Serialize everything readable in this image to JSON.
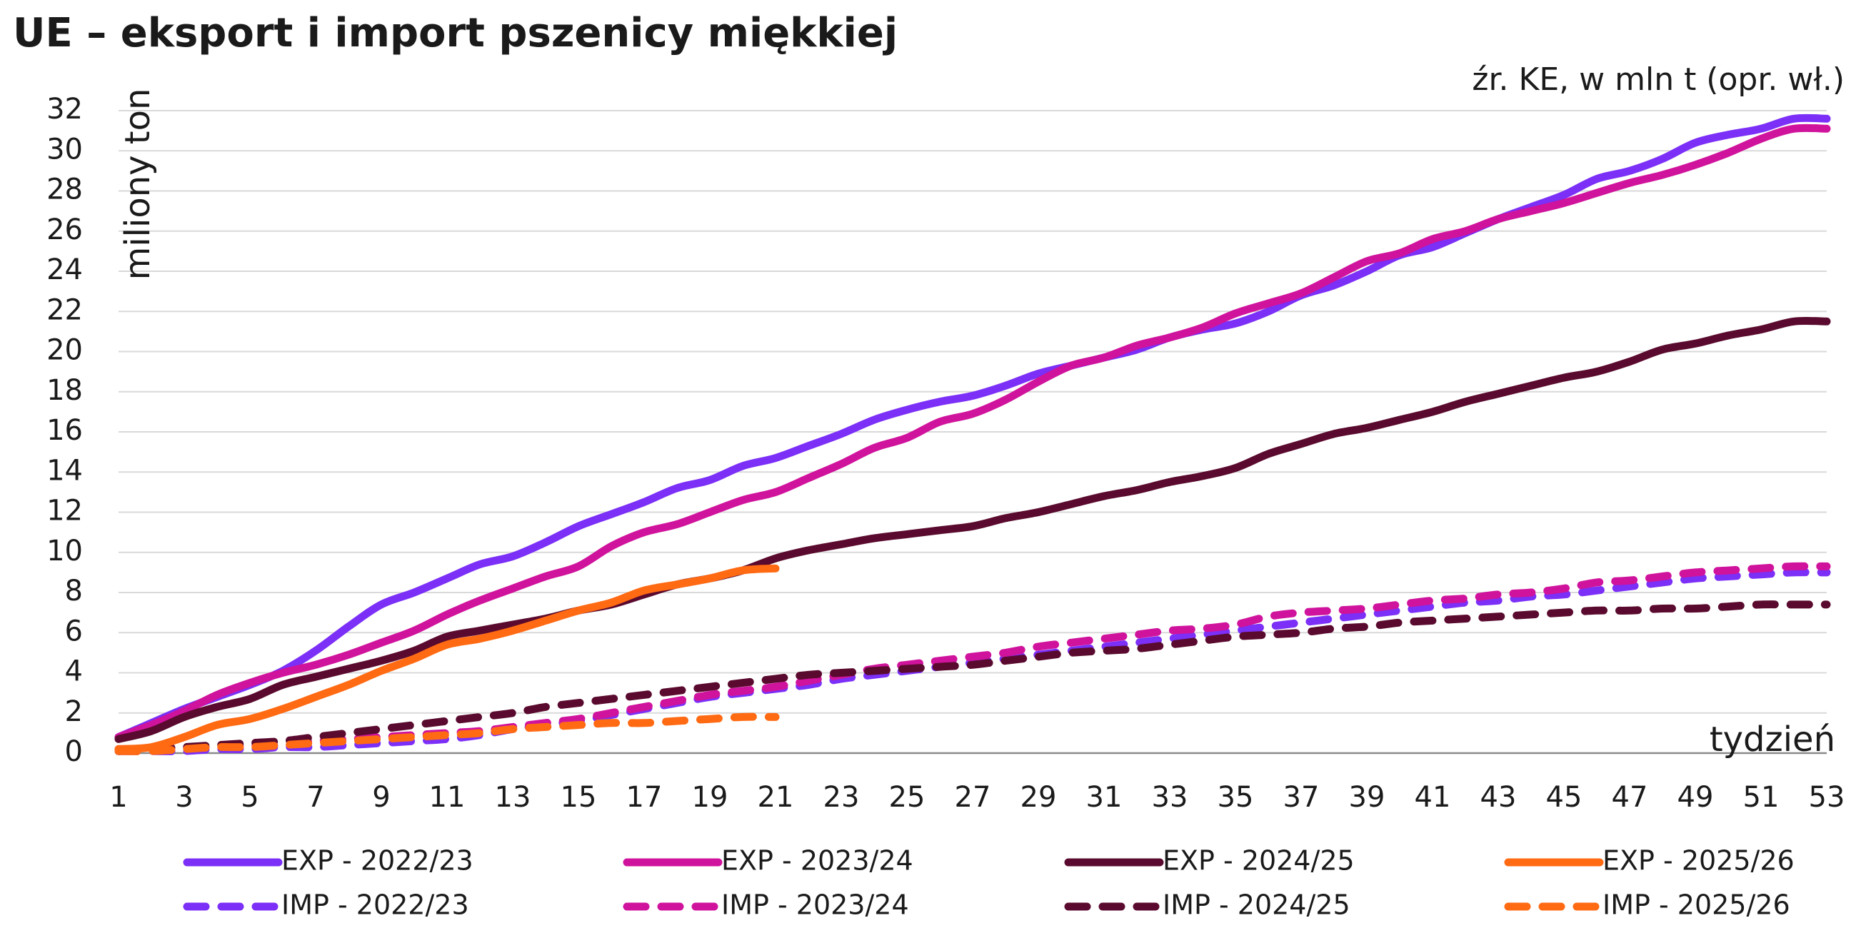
{
  "title": "UE – eksport i import pszenicy miękkiej",
  "source": "źr. KE, w mln t (opr. wł.)",
  "chart_data": {
    "type": "line",
    "ylabel": "miliony ton",
    "xlabel": "tydzień",
    "xlim": [
      1,
      53
    ],
    "ylim": [
      0,
      32
    ],
    "x_ticks": [
      1,
      3,
      5,
      7,
      9,
      11,
      13,
      15,
      17,
      19,
      21,
      23,
      25,
      27,
      29,
      31,
      33,
      35,
      37,
      39,
      41,
      43,
      45,
      47,
      49,
      51,
      53
    ],
    "y_ticks": [
      0,
      2,
      4,
      6,
      8,
      10,
      12,
      14,
      16,
      18,
      20,
      22,
      24,
      26,
      28,
      30,
      32
    ],
    "grid": "horizontal",
    "legend_position": "bottom",
    "series": [
      {
        "name": "EXP - 2022/23",
        "color": "#7b2ff7",
        "dash": "solid",
        "x": [
          1,
          2,
          3,
          4,
          5,
          6,
          7,
          8,
          9,
          10,
          11,
          12,
          13,
          14,
          15,
          16,
          17,
          18,
          19,
          20,
          21,
          22,
          23,
          24,
          25,
          26,
          27,
          28,
          29,
          30,
          31,
          32,
          33,
          34,
          35,
          36,
          37,
          38,
          39,
          40,
          41,
          42,
          43,
          44,
          45,
          46,
          47,
          48,
          49,
          50,
          51,
          52,
          53
        ],
        "y": [
          0.8,
          1.5,
          2.2,
          2.8,
          3.4,
          4.1,
          5.1,
          6.3,
          7.4,
          8.0,
          8.7,
          9.4,
          9.8,
          10.5,
          11.3,
          11.9,
          12.5,
          13.2,
          13.6,
          14.3,
          14.7,
          15.3,
          15.9,
          16.6,
          17.1,
          17.5,
          17.8,
          18.3,
          18.9,
          19.3,
          19.7,
          20.1,
          20.7,
          21.1,
          21.4,
          22.0,
          22.8,
          23.3,
          24.0,
          24.8,
          25.2,
          25.9,
          26.6,
          27.2,
          27.8,
          28.6,
          29.0,
          29.6,
          30.4,
          30.8,
          31.1,
          31.6,
          31.6
        ]
      },
      {
        "name": "EXP - 2023/24",
        "color": "#d0139c",
        "dash": "solid",
        "x": [
          1,
          2,
          3,
          4,
          5,
          6,
          7,
          8,
          9,
          10,
          11,
          12,
          13,
          14,
          15,
          16,
          17,
          18,
          19,
          20,
          21,
          22,
          23,
          24,
          25,
          26,
          27,
          28,
          29,
          30,
          31,
          32,
          33,
          34,
          35,
          36,
          37,
          38,
          39,
          40,
          41,
          42,
          43,
          44,
          45,
          46,
          47,
          48,
          49,
          50,
          51,
          52,
          53
        ],
        "y": [
          0.8,
          1.4,
          2.1,
          2.9,
          3.5,
          4.0,
          4.4,
          4.9,
          5.5,
          6.1,
          6.9,
          7.6,
          8.2,
          8.8,
          9.3,
          10.3,
          11.0,
          11.4,
          12.0,
          12.6,
          13.0,
          13.7,
          14.4,
          15.2,
          15.7,
          16.5,
          16.9,
          17.6,
          18.5,
          19.3,
          19.7,
          20.3,
          20.7,
          21.2,
          21.9,
          22.4,
          22.9,
          23.7,
          24.5,
          24.9,
          25.6,
          26.0,
          26.6,
          27.0,
          27.4,
          27.9,
          28.4,
          28.8,
          29.3,
          29.9,
          30.6,
          31.1,
          31.1
        ]
      },
      {
        "name": "EXP - 2024/25",
        "color": "#5a0a2e",
        "dash": "solid",
        "x": [
          1,
          2,
          3,
          4,
          5,
          6,
          7,
          8,
          9,
          10,
          11,
          12,
          13,
          14,
          15,
          16,
          17,
          18,
          19,
          20,
          21,
          22,
          23,
          24,
          25,
          26,
          27,
          28,
          29,
          30,
          31,
          32,
          33,
          34,
          35,
          36,
          37,
          38,
          39,
          40,
          41,
          42,
          43,
          44,
          45,
          46,
          47,
          48,
          49,
          50,
          51,
          52,
          53
        ],
        "y": [
          0.7,
          1.1,
          1.8,
          2.3,
          2.7,
          3.4,
          3.8,
          4.2,
          4.6,
          5.1,
          5.8,
          6.1,
          6.4,
          6.7,
          7.1,
          7.4,
          7.9,
          8.4,
          8.7,
          9.1,
          9.7,
          10.1,
          10.4,
          10.7,
          10.9,
          11.1,
          11.3,
          11.7,
          12.0,
          12.4,
          12.8,
          13.1,
          13.5,
          13.8,
          14.2,
          14.9,
          15.4,
          15.9,
          16.2,
          16.6,
          17.0,
          17.5,
          17.9,
          18.3,
          18.7,
          19.0,
          19.5,
          20.1,
          20.4,
          20.8,
          21.1,
          21.5,
          21.5
        ]
      },
      {
        "name": "EXP - 2025/26",
        "color": "#ff6a13",
        "dash": "solid",
        "x": [
          1,
          2,
          3,
          4,
          5,
          6,
          7,
          8,
          9,
          10,
          11,
          12,
          13,
          14,
          15,
          16,
          17,
          18,
          19,
          20,
          21
        ],
        "y": [
          0.2,
          0.3,
          0.8,
          1.4,
          1.7,
          2.2,
          2.8,
          3.4,
          4.1,
          4.7,
          5.4,
          5.7,
          6.1,
          6.6,
          7.1,
          7.5,
          8.1,
          8.4,
          8.7,
          9.1,
          9.2
        ]
      },
      {
        "name": "IMP - 2022/23",
        "color": "#7b2ff7",
        "dash": "dashed",
        "x": [
          1,
          2,
          3,
          4,
          5,
          6,
          7,
          8,
          9,
          10,
          11,
          12,
          13,
          14,
          15,
          16,
          17,
          18,
          19,
          20,
          21,
          22,
          23,
          24,
          25,
          26,
          27,
          28,
          29,
          30,
          31,
          32,
          33,
          34,
          35,
          36,
          37,
          38,
          39,
          40,
          41,
          42,
          43,
          44,
          45,
          46,
          47,
          48,
          49,
          50,
          51,
          52,
          53
        ],
        "y": [
          0.1,
          0.1,
          0.1,
          0.2,
          0.2,
          0.3,
          0.3,
          0.4,
          0.5,
          0.6,
          0.7,
          0.9,
          1.2,
          1.4,
          1.6,
          1.9,
          2.2,
          2.5,
          2.8,
          3.0,
          3.2,
          3.4,
          3.7,
          3.9,
          4.1,
          4.3,
          4.5,
          4.7,
          4.9,
          5.1,
          5.3,
          5.5,
          5.7,
          5.9,
          6.1,
          6.3,
          6.5,
          6.7,
          6.9,
          7.1,
          7.3,
          7.5,
          7.6,
          7.8,
          7.9,
          8.1,
          8.3,
          8.5,
          8.7,
          8.8,
          8.9,
          9.0,
          9.0
        ]
      },
      {
        "name": "IMP - 2023/24",
        "color": "#d0139c",
        "dash": "dashed",
        "x": [
          1,
          2,
          3,
          4,
          5,
          6,
          7,
          8,
          9,
          10,
          11,
          12,
          13,
          14,
          15,
          16,
          17,
          18,
          19,
          20,
          21,
          22,
          23,
          24,
          25,
          26,
          27,
          28,
          29,
          30,
          31,
          32,
          33,
          34,
          35,
          36,
          37,
          38,
          39,
          40,
          41,
          42,
          43,
          44,
          45,
          46,
          47,
          48,
          49,
          50,
          51,
          52,
          53
        ],
        "y": [
          0.2,
          0.2,
          0.3,
          0.3,
          0.4,
          0.4,
          0.6,
          0.7,
          0.8,
          0.9,
          1.0,
          1.1,
          1.3,
          1.5,
          1.7,
          2.0,
          2.3,
          2.6,
          2.9,
          3.1,
          3.3,
          3.6,
          3.9,
          4.2,
          4.4,
          4.6,
          4.8,
          5.0,
          5.3,
          5.5,
          5.7,
          5.9,
          6.1,
          6.2,
          6.4,
          6.8,
          7.0,
          7.1,
          7.2,
          7.4,
          7.6,
          7.7,
          7.9,
          8.0,
          8.2,
          8.5,
          8.6,
          8.8,
          9.0,
          9.1,
          9.2,
          9.3,
          9.3
        ]
      },
      {
        "name": "IMP - 2024/25",
        "color": "#5a0a2e",
        "dash": "dashed",
        "x": [
          1,
          2,
          3,
          4,
          5,
          6,
          7,
          8,
          9,
          10,
          11,
          12,
          13,
          14,
          15,
          16,
          17,
          18,
          19,
          20,
          21,
          22,
          23,
          24,
          25,
          26,
          27,
          28,
          29,
          30,
          31,
          32,
          33,
          34,
          35,
          36,
          37,
          38,
          39,
          40,
          41,
          42,
          43,
          44,
          45,
          46,
          47,
          48,
          49,
          50,
          51,
          52,
          53
        ],
        "y": [
          0.1,
          0.2,
          0.3,
          0.4,
          0.5,
          0.6,
          0.8,
          1.0,
          1.2,
          1.4,
          1.6,
          1.8,
          2.0,
          2.3,
          2.5,
          2.7,
          2.9,
          3.1,
          3.3,
          3.5,
          3.7,
          3.9,
          4.0,
          4.1,
          4.2,
          4.3,
          4.4,
          4.6,
          4.8,
          5.0,
          5.1,
          5.2,
          5.4,
          5.6,
          5.8,
          5.9,
          6.0,
          6.2,
          6.3,
          6.5,
          6.6,
          6.7,
          6.8,
          6.9,
          7.0,
          7.1,
          7.1,
          7.2,
          7.2,
          7.3,
          7.4,
          7.4,
          7.4
        ]
      },
      {
        "name": "IMP - 2025/26",
        "color": "#ff6a13",
        "dash": "dashed",
        "x": [
          1,
          2,
          3,
          4,
          5,
          6,
          7,
          8,
          9,
          10,
          11,
          12,
          13,
          14,
          15,
          16,
          17,
          18,
          19,
          20,
          21
        ],
        "y": [
          0.1,
          0.1,
          0.2,
          0.3,
          0.3,
          0.4,
          0.5,
          0.6,
          0.7,
          0.8,
          0.9,
          1.0,
          1.2,
          1.3,
          1.4,
          1.5,
          1.5,
          1.6,
          1.7,
          1.8,
          1.8
        ]
      }
    ]
  }
}
